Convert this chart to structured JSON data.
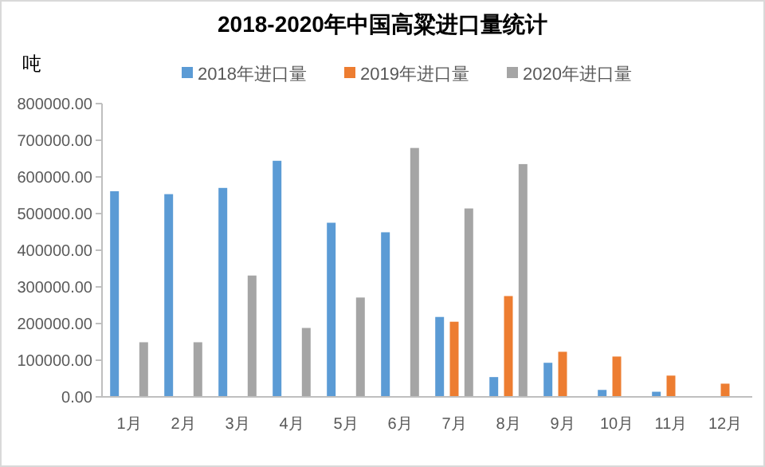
{
  "chart_data": {
    "type": "bar",
    "title": "2018-2020年中国高粱进口量统计",
    "ylabel": "吨",
    "categories": [
      "1月",
      "2月",
      "3月",
      "4月",
      "5月",
      "6月",
      "7月",
      "8月",
      "9月",
      "10月",
      "11月",
      "12月"
    ],
    "series": [
      {
        "name": "2018年进口量",
        "color": "#5b9bd5",
        "values": [
          561000,
          553000,
          570000,
          644000,
          475000,
          449000,
          218000,
          54000,
          93000,
          19000,
          14000,
          null
        ]
      },
      {
        "name": "2019年进口量",
        "color": "#ed7d31",
        "values": [
          null,
          null,
          null,
          null,
          null,
          null,
          205000,
          275000,
          123000,
          110000,
          58000,
          36000
        ]
      },
      {
        "name": "2020年进口量",
        "color": "#a5a5a5",
        "values": [
          149000,
          149000,
          331000,
          188000,
          271000,
          679000,
          514000,
          635000,
          null,
          null,
          null,
          null
        ]
      }
    ],
    "ylim": [
      0,
      800000
    ],
    "yticks": [
      {
        "value": 0,
        "label": "0.00"
      },
      {
        "value": 100000,
        "label": "100000.00"
      },
      {
        "value": 200000,
        "label": "200000.00"
      },
      {
        "value": 300000,
        "label": "300000.00"
      },
      {
        "value": 400000,
        "label": "400000.00"
      },
      {
        "value": 500000,
        "label": "500000.00"
      },
      {
        "value": 600000,
        "label": "600000.00"
      },
      {
        "value": 700000,
        "label": "700000.00"
      },
      {
        "value": 800000,
        "label": "800000.00"
      }
    ],
    "legend": "top",
    "grid": false
  }
}
